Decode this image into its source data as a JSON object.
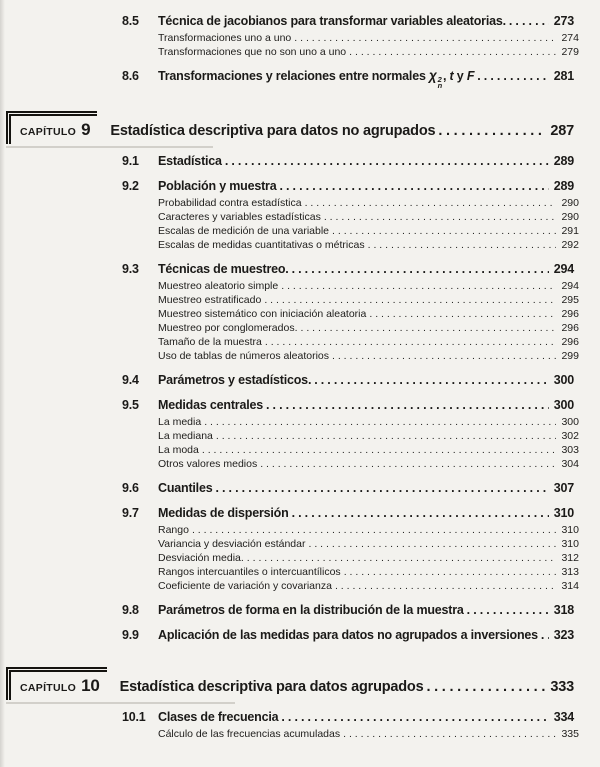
{
  "page": {
    "background": "#f3f2ee",
    "ink": "#1b1a18",
    "kind": "table-of-contents"
  },
  "entries": [
    {
      "type": "section",
      "num": "8.5",
      "title": "Técnica de jacobianos para transformar variables aleatorias.",
      "page": "273"
    },
    {
      "type": "sub",
      "title": "Transformaciones uno a uno",
      "page": "274"
    },
    {
      "type": "sub",
      "title": "Transformaciones que no son uno a uno",
      "page": "279"
    },
    {
      "type": "section",
      "num": "8.6",
      "title": "Transformaciones y relaciones entre normales ",
      "math": {
        "base": "χ",
        "sup": "2",
        "sub": "n"
      },
      "tail_pre": ", ",
      "tail_t": "t",
      "tail_mid": " y ",
      "tail_f": "F",
      "page": "281"
    },
    {
      "type": "chapter",
      "label": "CAPÍTULO",
      "number": "9",
      "title": "Estadística descriptiva para datos no agrupados",
      "page": "287"
    },
    {
      "type": "section",
      "num": "9.1",
      "title": "Estadística",
      "page": "289"
    },
    {
      "type": "section",
      "num": "9.2",
      "title": "Población y muestra",
      "page": "289"
    },
    {
      "type": "sub",
      "title": "Probabilidad contra estadística",
      "page": "290"
    },
    {
      "type": "sub",
      "title": "Caracteres y variables estadísticas",
      "page": "290"
    },
    {
      "type": "sub",
      "title": "Escalas de medición de una variable",
      "page": "291"
    },
    {
      "type": "sub",
      "title": "Escalas de medidas cuantitativas o métricas",
      "page": "292"
    },
    {
      "type": "section",
      "num": "9.3",
      "title": "Técnicas de muestreo.",
      "page": "294"
    },
    {
      "type": "sub",
      "title": "Muestreo aleatorio simple",
      "page": "294"
    },
    {
      "type": "sub",
      "title": "Muestreo estratificado",
      "page": "295"
    },
    {
      "type": "sub",
      "title": "Muestreo sistemático con iniciación aleatoria",
      "page": "296"
    },
    {
      "type": "sub",
      "title": "Muestreo por conglomerados.",
      "page": "296"
    },
    {
      "type": "sub",
      "title": "Tamaño de la muestra",
      "page": "296"
    },
    {
      "type": "sub",
      "title": "Uso de tablas de números aleatorios",
      "page": "299"
    },
    {
      "type": "section",
      "num": "9.4",
      "title": "Parámetros y estadísticos.",
      "page": "300"
    },
    {
      "type": "section",
      "num": "9.5",
      "title": "Medidas centrales",
      "page": "300"
    },
    {
      "type": "sub",
      "title": "La media",
      "page": "300"
    },
    {
      "type": "sub",
      "title": "La mediana",
      "page": "302"
    },
    {
      "type": "sub",
      "title": "La moda",
      "page": "303"
    },
    {
      "type": "sub",
      "title": "Otros valores medios",
      "page": "304"
    },
    {
      "type": "section",
      "num": "9.6",
      "title": "Cuantiles",
      "page": "307"
    },
    {
      "type": "section",
      "num": "9.7",
      "title": "Medidas de dispersión",
      "page": "310"
    },
    {
      "type": "sub",
      "title": "Rango",
      "page": "310"
    },
    {
      "type": "sub",
      "title": "Variancia y desviación estándar",
      "page": "310"
    },
    {
      "type": "sub",
      "title": "Desviación media.",
      "page": "312"
    },
    {
      "type": "sub",
      "title": "Rangos intercuantiles o intercuantílicos",
      "page": "313"
    },
    {
      "type": "sub",
      "title": "Coeficiente de variación y covarianza",
      "page": "314"
    },
    {
      "type": "section",
      "num": "9.8",
      "title": "Parámetros de forma en la distribución de la muestra",
      "page": "318"
    },
    {
      "type": "section",
      "num": "9.9",
      "title": "Aplicación de las medidas para datos no agrupados a inversiones",
      "page": "323"
    },
    {
      "type": "chapter",
      "label": "CAPÍTULO",
      "number": "10",
      "title": "Estadística descriptiva para datos agrupados",
      "page": "333"
    },
    {
      "type": "section",
      "num": "10.1",
      "title": "Clases de frecuencia",
      "page": "334"
    },
    {
      "type": "sub",
      "title": "Cálculo de las frecuencias acumuladas",
      "page": "335"
    }
  ]
}
